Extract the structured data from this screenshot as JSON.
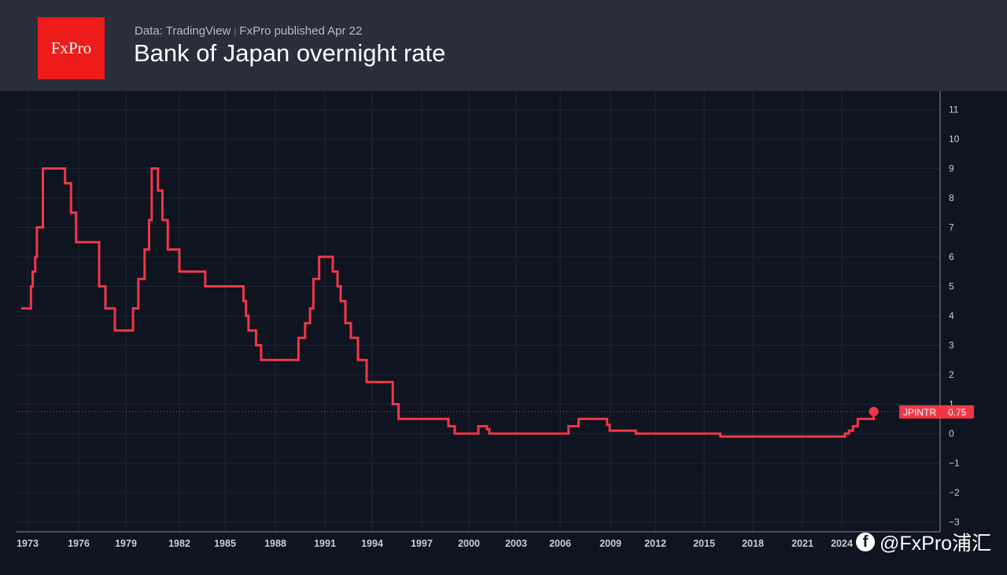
{
  "header": {
    "logo": "FxPro",
    "source": "Data: TradingView",
    "separator": "|",
    "publisher": "FxPro published Apr 22",
    "title": "Bank of Japan overnight rate"
  },
  "watermark": {
    "icon": "facebook-icon",
    "text": "@FxPro浦汇"
  },
  "colors": {
    "line": "#f23645",
    "background": "#0f1421",
    "header": "#2a2d3a"
  },
  "chart_data": {
    "type": "line",
    "title": "Bank of Japan overnight rate",
    "series_name": "JPINTR",
    "last_value_label": "0.75",
    "step": true,
    "ylim": [
      -3.3,
      11.5
    ],
    "yticks": [
      "11",
      "10",
      "9",
      "8",
      "7",
      "6",
      "5",
      "4",
      "3",
      "2",
      "1",
      "0",
      "−1",
      "−2",
      "−3"
    ],
    "ytick_values": [
      11,
      10,
      9,
      8,
      7,
      6,
      5,
      4,
      3,
      2,
      1,
      0,
      -1,
      -2,
      -3
    ],
    "xticks": [
      "1973",
      "1976",
      "1979",
      "1982",
      "1985",
      "1988",
      "1991",
      "1994",
      "1997",
      "2000",
      "2003",
      "2006",
      "2009",
      "2012",
      "2015",
      "2018",
      "2021",
      "2024"
    ],
    "grid": true,
    "points": [
      [
        1972.6,
        4.25
      ],
      [
        1973.2,
        5
      ],
      [
        1973.3,
        5.5
      ],
      [
        1973.45,
        6
      ],
      [
        1973.55,
        7
      ],
      [
        1973.9,
        9
      ],
      [
        1975.2,
        8.5
      ],
      [
        1975.55,
        7.5
      ],
      [
        1975.85,
        6.5
      ],
      [
        1977.3,
        5
      ],
      [
        1977.7,
        4.25
      ],
      [
        1978.3,
        3.5
      ],
      [
        1979.4,
        4.25
      ],
      [
        1979.7,
        5.25
      ],
      [
        1980.05,
        6.25
      ],
      [
        1980.3,
        7.25
      ],
      [
        1980.45,
        9
      ],
      [
        1980.8,
        8.25
      ],
      [
        1981.05,
        7.25
      ],
      [
        1981.35,
        6.25
      ],
      [
        1982.0,
        5.5
      ],
      [
        1983.7,
        5
      ],
      [
        1986.1,
        4.5
      ],
      [
        1986.25,
        4
      ],
      [
        1986.4,
        3.5
      ],
      [
        1986.85,
        3
      ],
      [
        1987.15,
        2.5
      ],
      [
        1989.4,
        3.25
      ],
      [
        1989.8,
        3.75
      ],
      [
        1990.1,
        4.25
      ],
      [
        1990.3,
        5.25
      ],
      [
        1990.65,
        6
      ],
      [
        1991.5,
        5.5
      ],
      [
        1991.8,
        5
      ],
      [
        1992.0,
        4.5
      ],
      [
        1992.3,
        3.75
      ],
      [
        1992.65,
        3.25
      ],
      [
        1993.1,
        2.5
      ],
      [
        1993.65,
        1.75
      ],
      [
        1995.25,
        1
      ],
      [
        1995.6,
        0.5
      ],
      [
        1998.7,
        0.25
      ],
      [
        1999.1,
        0
      ],
      [
        2000.6,
        0.25
      ],
      [
        2001.15,
        0.15
      ],
      [
        2001.3,
        0
      ],
      [
        2006.5,
        0.25
      ],
      [
        2007.1,
        0.5
      ],
      [
        2008.8,
        0.3
      ],
      [
        2008.95,
        0.1
      ],
      [
        2010.7,
        0
      ],
      [
        2016.0,
        -0.1
      ],
      [
        2024.2,
        0
      ],
      [
        2024.45,
        0.1
      ],
      [
        2024.7,
        0.25
      ],
      [
        2025.0,
        0.5
      ],
      [
        2026.0,
        0.75
      ]
    ]
  }
}
